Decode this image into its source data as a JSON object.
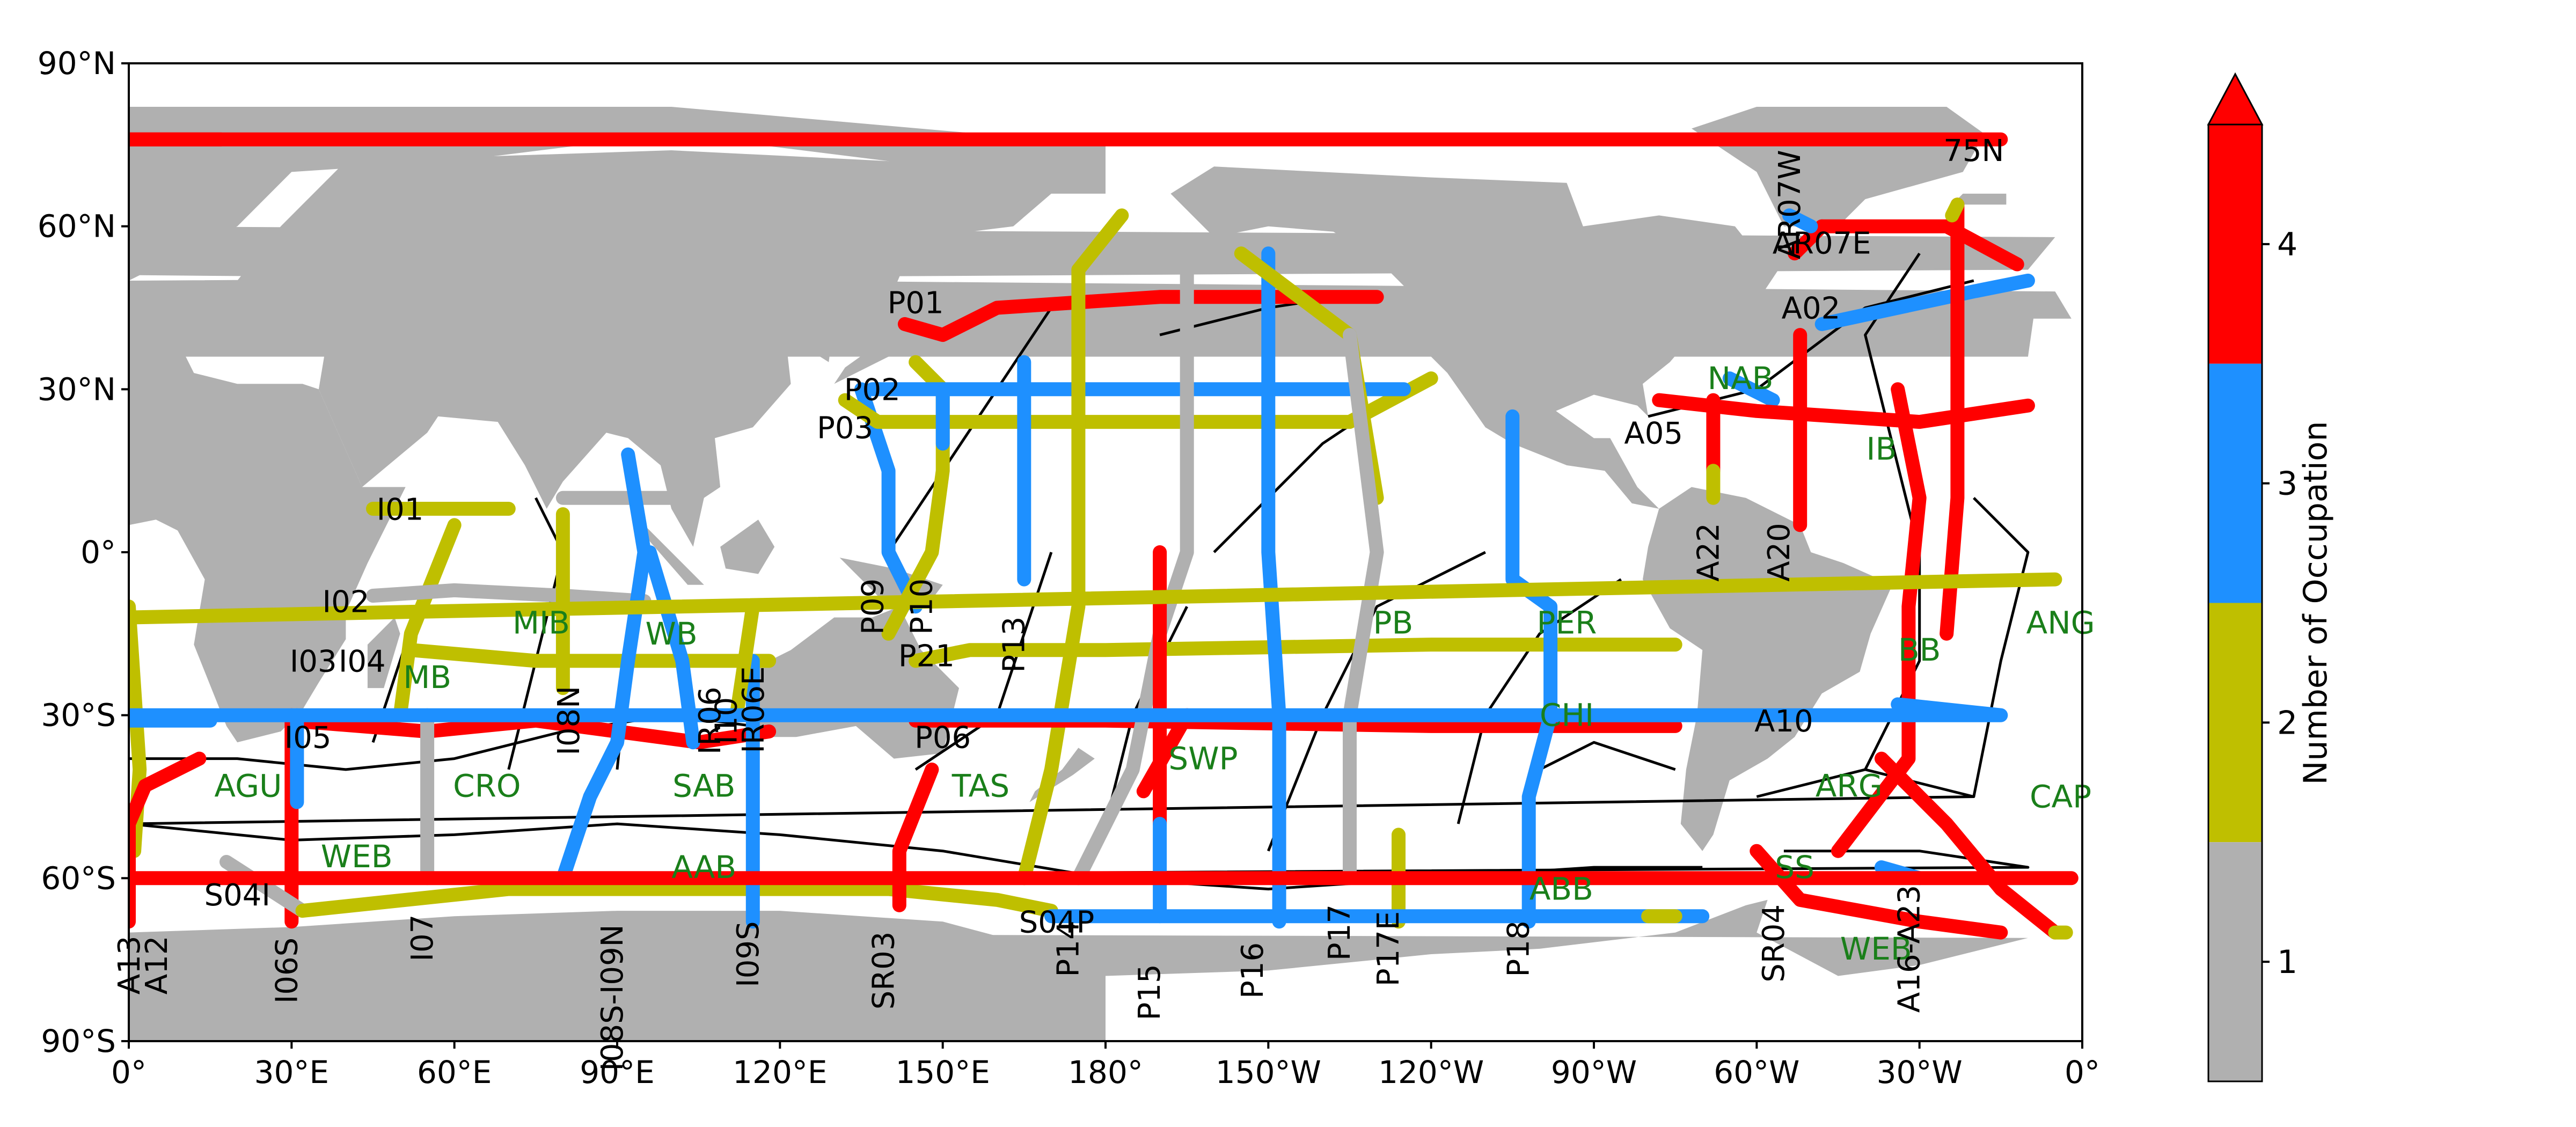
{
  "map": {
    "lat_ticks": [
      "90°N",
      "60°N",
      "30°N",
      "0°",
      "30°S",
      "60°S",
      "90°S"
    ],
    "lon_ticks": [
      "0°",
      "30°E",
      "60°E",
      "90°E",
      "120°E",
      "150°E",
      "180°",
      "150°W",
      "120°W",
      "90°W",
      "60°W",
      "30°W",
      "0°"
    ],
    "colors": {
      "land": "#b0b0b0",
      "ocean": "#ffffff",
      "gray": "#b0b0b0",
      "olive": "#bfbf00",
      "blue": "#1e90ff",
      "red": "#ff0000",
      "boundary": "#000000",
      "basin_label": "#1a7f1a"
    }
  },
  "colorbar": {
    "label": "Number of Occupation",
    "ticks": [
      "1",
      "2",
      "3",
      "4"
    ]
  },
  "basins": [
    {
      "name": "NAB",
      "lon": -63,
      "lat": 32
    },
    {
      "name": "IB",
      "lon": -37,
      "lat": 19
    },
    {
      "name": "BB",
      "lon": -30,
      "lat": -18
    },
    {
      "name": "ANG",
      "lon": -4,
      "lat": -13
    },
    {
      "name": "ARG",
      "lon": -43,
      "lat": -43
    },
    {
      "name": "CAP",
      "lon": -4,
      "lat": -45
    },
    {
      "name": "SS",
      "lon": -53,
      "lat": -58
    },
    {
      "name": "WEB",
      "lon": -38,
      "lat": -73
    },
    {
      "name": "WEB",
      "lon": 42,
      "lat": -56
    },
    {
      "name": "AGU",
      "lon": 22,
      "lat": -43
    },
    {
      "name": "CRO",
      "lon": 66,
      "lat": -43
    },
    {
      "name": "SAB",
      "lon": 106,
      "lat": -43
    },
    {
      "name": "AAB",
      "lon": 106,
      "lat": -58
    },
    {
      "name": "MIB",
      "lon": 76,
      "lat": -13
    },
    {
      "name": "MB",
      "lon": 55,
      "lat": -23
    },
    {
      "name": "WB",
      "lon": 100,
      "lat": -15
    },
    {
      "name": "TAS",
      "lon": 157,
      "lat": -43
    },
    {
      "name": "SWP",
      "lon": -162,
      "lat": -38
    },
    {
      "name": "PB",
      "lon": -127,
      "lat": -13
    },
    {
      "name": "PER",
      "lon": -95,
      "lat": -13
    },
    {
      "name": "CHI",
      "lon": -95,
      "lat": -30
    },
    {
      "name": "ABB",
      "lon": -96,
      "lat": -62
    }
  ],
  "sections": [
    {
      "name": "75N",
      "lon": -20,
      "lat": 72,
      "rot": 0
    },
    {
      "name": "AR07W",
      "lon": -52,
      "lat": 64,
      "rot": -90
    },
    {
      "name": "AR07E",
      "lon": -48,
      "lat": 55,
      "rot": 0
    },
    {
      "name": "A02",
      "lon": -50,
      "lat": 43,
      "rot": 0
    },
    {
      "name": "A05",
      "lon": -79,
      "lat": 20,
      "rot": 0
    },
    {
      "name": "A22",
      "lon": -67,
      "lat": 0,
      "rot": -90
    },
    {
      "name": "A20",
      "lon": -54,
      "lat": 0,
      "rot": -90
    },
    {
      "name": "A10",
      "lon": -55,
      "lat": -33,
      "rot": 0
    },
    {
      "name": "SR04",
      "lon": -55,
      "lat": -72,
      "rot": -90
    },
    {
      "name": "A16-A23",
      "lon": -30,
      "lat": -73,
      "rot": -90
    },
    {
      "name": "A13",
      "lon": 2,
      "lat": -76,
      "rot": -90
    },
    {
      "name": "A12",
      "lon": 7,
      "lat": -76,
      "rot": -90
    },
    {
      "name": "I06S",
      "lon": 31,
      "lat": -77,
      "rot": -90
    },
    {
      "name": "I07",
      "lon": 56,
      "lat": -71,
      "rot": -90
    },
    {
      "name": "I08S-I09N",
      "lon": 91,
      "lat": -82,
      "rot": -90
    },
    {
      "name": "I09S",
      "lon": 116,
      "lat": -74,
      "rot": -90
    },
    {
      "name": "SR03",
      "lon": 141,
      "lat": -77,
      "rot": -90
    },
    {
      "name": "S04P",
      "lon": 171,
      "lat": -70,
      "rot": 0
    },
    {
      "name": "P14",
      "lon": 175,
      "lat": -73,
      "rot": -90
    },
    {
      "name": "P15",
      "lon": -170,
      "lat": -81,
      "rot": -90
    },
    {
      "name": "P16",
      "lon": -151,
      "lat": -77,
      "rot": -90
    },
    {
      "name": "P17",
      "lon": -135,
      "lat": -70,
      "rot": -90
    },
    {
      "name": "P17E",
      "lon": -126,
      "lat": -73,
      "rot": -90
    },
    {
      "name": "P18",
      "lon": -102,
      "lat": -73,
      "rot": -90
    },
    {
      "name": "S04I",
      "lon": 20,
      "lat": -65,
      "rot": 0
    },
    {
      "name": "I05",
      "lon": 33,
      "lat": -36,
      "rot": 0
    },
    {
      "name": "I03",
      "lon": 34,
      "lat": -22,
      "rot": 0
    },
    {
      "name": "I04",
      "lon": 43,
      "lat": -22,
      "rot": 0
    },
    {
      "name": "I02",
      "lon": 40,
      "lat": -11,
      "rot": 0
    },
    {
      "name": "I01",
      "lon": 50,
      "lat": 6,
      "rot": 0
    },
    {
      "name": "I08N",
      "lon": 83,
      "lat": -31,
      "rot": -90
    },
    {
      "name": "IR06",
      "lon": 109,
      "lat": -31,
      "rot": -90
    },
    {
      "name": "I10",
      "lon": 112,
      "lat": -31,
      "rot": -90
    },
    {
      "name": "IR06E",
      "lon": 117,
      "lat": -29,
      "rot": -90
    },
    {
      "name": "P01",
      "lon": 145,
      "lat": 44,
      "rot": 0
    },
    {
      "name": "P02",
      "lon": 137,
      "lat": 28,
      "rot": 0
    },
    {
      "name": "P03",
      "lon": 132,
      "lat": 21,
      "rot": 0
    },
    {
      "name": "P09",
      "lon": 139,
      "lat": -10,
      "rot": -90
    },
    {
      "name": "P10",
      "lon": 148,
      "lat": -10,
      "rot": -90
    },
    {
      "name": "P13",
      "lon": 165,
      "lat": -17,
      "rot": -90
    },
    {
      "name": "P21",
      "lon": 147,
      "lat": -21,
      "rot": 0
    },
    {
      "name": "P06",
      "lon": 150,
      "lat": -36,
      "rot": 0
    }
  ]
}
